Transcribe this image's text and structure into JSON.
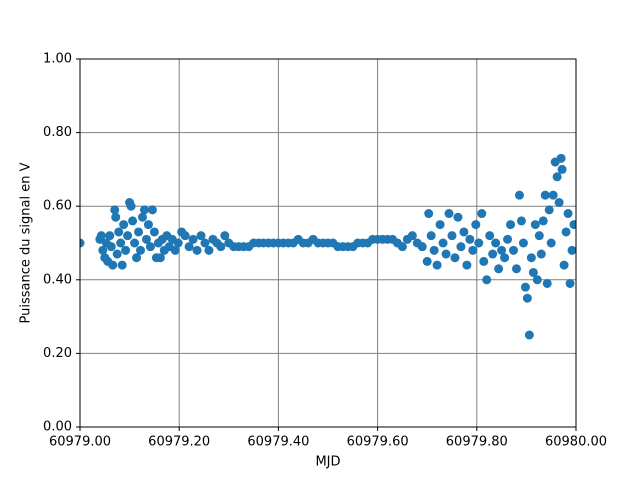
{
  "chart_data": {
    "type": "scatter",
    "x_label": "MJD",
    "y_label": "Puissance du signal en V",
    "color": "#1f77b4",
    "grid": true,
    "xlim": [
      60979.0,
      60980.0
    ],
    "ylim": [
      0.0,
      1.0
    ],
    "xticks": [
      {
        "value": 60979.0,
        "label": "60979.00"
      },
      {
        "value": 60979.2,
        "label": "60979.20"
      },
      {
        "value": 60979.4,
        "label": "60979.40"
      },
      {
        "value": 60979.6,
        "label": "60979.60"
      },
      {
        "value": 60979.8,
        "label": "60979.80"
      },
      {
        "value": 60980.0,
        "label": "60980.00"
      }
    ],
    "yticks": [
      {
        "value": 0.0,
        "label": "0.00"
      },
      {
        "value": 0.2,
        "label": "0.20"
      },
      {
        "value": 0.4,
        "label": "0.40"
      },
      {
        "value": 0.6,
        "label": "0.60"
      },
      {
        "value": 0.8,
        "label": "0.80"
      },
      {
        "value": 1.0,
        "label": "1.00"
      }
    ],
    "x": [
      60979.0,
      60979.04,
      60979.043,
      60979.046,
      60979.05,
      60979.053,
      60979.056,
      60979.06,
      60979.063,
      60979.066,
      60979.07,
      60979.072,
      60979.075,
      60979.078,
      60979.082,
      60979.085,
      60979.088,
      60979.092,
      60979.096,
      60979.1,
      60979.103,
      60979.106,
      60979.11,
      60979.114,
      60979.118,
      60979.122,
      60979.126,
      60979.13,
      60979.134,
      60979.138,
      60979.142,
      60979.146,
      60979.15,
      60979.154,
      60979.158,
      60979.162,
      60979.166,
      60979.17,
      60979.175,
      60979.18,
      60979.186,
      60979.192,
      60979.198,
      60979.205,
      60979.212,
      60979.22,
      60979.228,
      60979.236,
      60979.244,
      60979.252,
      60979.26,
      60979.268,
      60979.276,
      60979.284,
      60979.292,
      60979.3,
      60979.31,
      60979.32,
      60979.33,
      60979.34,
      60979.35,
      60979.36,
      60979.37,
      60979.38,
      60979.39,
      60979.4,
      60979.41,
      60979.42,
      60979.43,
      60979.44,
      60979.45,
      60979.46,
      60979.47,
      60979.48,
      60979.49,
      60979.5,
      60979.51,
      60979.52,
      60979.53,
      60979.54,
      60979.55,
      60979.56,
      60979.57,
      60979.58,
      60979.59,
      60979.6,
      60979.61,
      60979.62,
      60979.63,
      60979.64,
      60979.65,
      60979.66,
      60979.67,
      60979.68,
      60979.69,
      60979.7,
      60979.703,
      60979.708,
      60979.714,
      60979.72,
      60979.726,
      60979.732,
      60979.738,
      60979.744,
      60979.75,
      60979.756,
      60979.762,
      60979.768,
      60979.774,
      60979.78,
      60979.786,
      60979.792,
      60979.798,
      60979.804,
      60979.81,
      60979.814,
      60979.82,
      60979.826,
      60979.832,
      60979.838,
      60979.844,
      60979.85,
      60979.856,
      60979.862,
      60979.868,
      60979.874,
      60979.88,
      60979.886,
      60979.89,
      60979.894,
      60979.898,
      60979.902,
      60979.906,
      60979.91,
      60979.914,
      60979.918,
      60979.922,
      60979.926,
      60979.93,
      60979.934,
      60979.938,
      60979.942,
      60979.946,
      60979.95,
      60979.954,
      60979.958,
      60979.962,
      60979.966,
      60979.97,
      60979.972,
      60979.976,
      60979.98,
      60979.984,
      60979.988,
      60979.992,
      60979.996
    ],
    "values": [
      0.5,
      0.51,
      0.52,
      0.48,
      0.46,
      0.5,
      0.45,
      0.52,
      0.49,
      0.44,
      0.59,
      0.57,
      0.47,
      0.53,
      0.5,
      0.44,
      0.55,
      0.48,
      0.52,
      0.61,
      0.6,
      0.56,
      0.5,
      0.46,
      0.53,
      0.48,
      0.57,
      0.59,
      0.51,
      0.55,
      0.49,
      0.59,
      0.53,
      0.46,
      0.5,
      0.46,
      0.51,
      0.48,
      0.52,
      0.49,
      0.51,
      0.48,
      0.5,
      0.53,
      0.52,
      0.49,
      0.51,
      0.48,
      0.52,
      0.5,
      0.48,
      0.51,
      0.5,
      0.49,
      0.52,
      0.5,
      0.49,
      0.49,
      0.49,
      0.49,
      0.5,
      0.5,
      0.5,
      0.5,
      0.5,
      0.5,
      0.5,
      0.5,
      0.5,
      0.51,
      0.5,
      0.5,
      0.51,
      0.5,
      0.5,
      0.5,
      0.5,
      0.49,
      0.49,
      0.49,
      0.49,
      0.5,
      0.5,
      0.5,
      0.51,
      0.51,
      0.51,
      0.51,
      0.51,
      0.5,
      0.49,
      0.51,
      0.52,
      0.5,
      0.49,
      0.45,
      0.58,
      0.52,
      0.48,
      0.44,
      0.55,
      0.5,
      0.47,
      0.58,
      0.52,
      0.46,
      0.57,
      0.49,
      0.53,
      0.44,
      0.51,
      0.48,
      0.55,
      0.5,
      0.58,
      0.45,
      0.4,
      0.52,
      0.47,
      0.5,
      0.43,
      0.48,
      0.46,
      0.51,
      0.55,
      0.48,
      0.43,
      0.63,
      0.56,
      0.5,
      0.38,
      0.35,
      0.25,
      0.46,
      0.42,
      0.55,
      0.4,
      0.52,
      0.47,
      0.56,
      0.63,
      0.39,
      0.59,
      0.5,
      0.63,
      0.72,
      0.68,
      0.61,
      0.73,
      0.7,
      0.44,
      0.53,
      0.58,
      0.39,
      0.48,
      0.55
    ]
  }
}
